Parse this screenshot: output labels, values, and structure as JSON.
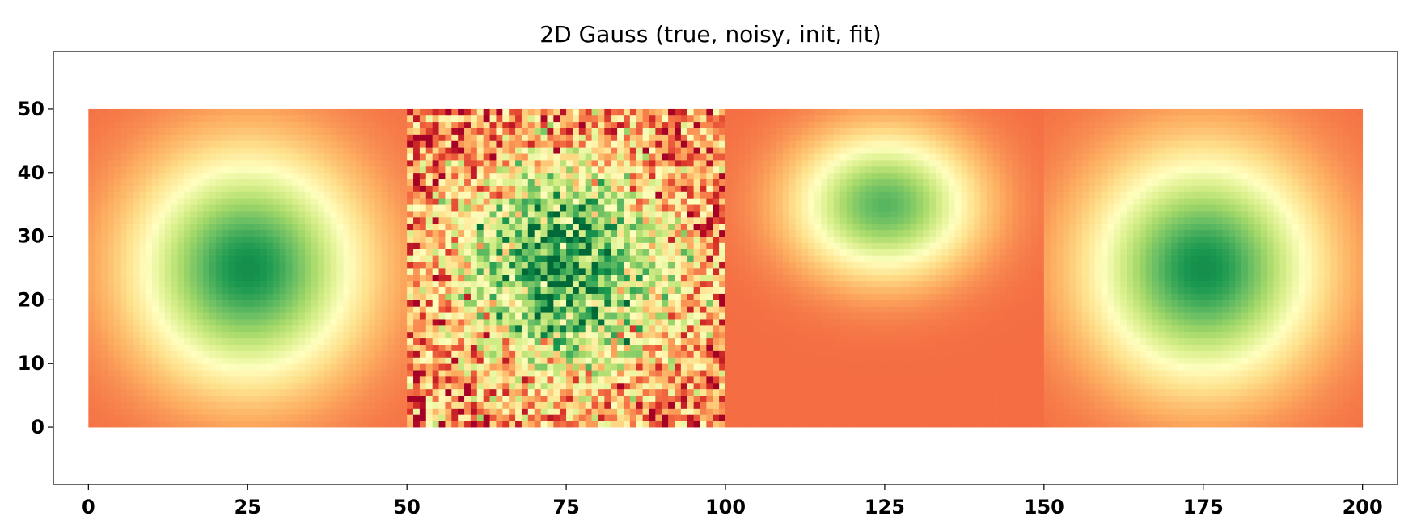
{
  "chart_data": {
    "type": "heatmap",
    "title": "2D Gauss (true, noisy, init, fit)",
    "xlabel": "",
    "ylabel": "",
    "xlim": [
      -5.5,
      205.5
    ],
    "ylim": [
      -9,
      59
    ],
    "xticks": [
      0,
      25,
      50,
      75,
      100,
      125,
      150,
      175,
      200
    ],
    "yticks": [
      0,
      10,
      20,
      30,
      40,
      50
    ],
    "colormap": "RdYlGn",
    "colormap_stops": [
      "#a50026",
      "#d73027",
      "#f46d43",
      "#fdae61",
      "#fee08b",
      "#ffffbf",
      "#d9ef8b",
      "#a6d96a",
      "#66bd63",
      "#1a9850",
      "#006837"
    ],
    "grid": false,
    "panels": [
      {
        "label": "true",
        "x_range": [
          0,
          50
        ],
        "y_range": [
          0,
          50
        ],
        "center": [
          25,
          25
        ],
        "sigma_x": 12,
        "sigma_y": 12,
        "amplitude": 0.72,
        "noise": 0
      },
      {
        "label": "noisy",
        "x_range": [
          50,
          100
        ],
        "y_range": [
          0,
          50
        ],
        "center": [
          75,
          25
        ],
        "sigma_x": 12,
        "sigma_y": 12,
        "amplitude": 0.72,
        "noise": 0.28
      },
      {
        "label": "init",
        "x_range": [
          100,
          150
        ],
        "y_range": [
          0,
          50
        ],
        "center": [
          125,
          35
        ],
        "sigma_x": 9.5,
        "sigma_y": 7.5,
        "amplitude": 0.62,
        "noise": 0
      },
      {
        "label": "fit",
        "x_range": [
          150,
          200
        ],
        "y_range": [
          0,
          50
        ],
        "center": [
          175,
          25
        ],
        "sigma_x": 12,
        "sigma_y": 12,
        "amplitude": 0.72,
        "noise": 0
      }
    ],
    "value_range": [
      0,
      1
    ],
    "background_value": 0.2
  }
}
